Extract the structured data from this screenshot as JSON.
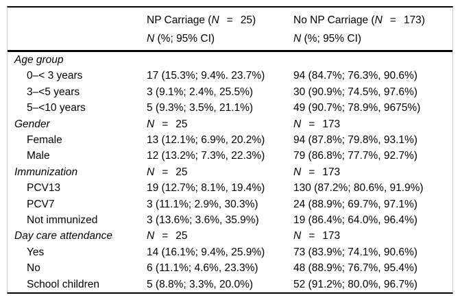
{
  "page": {
    "background": "#ffffff",
    "text_color": "#000000",
    "rule_color": "#000000",
    "frame_color": "#cbcbcb"
  },
  "table": {
    "header": {
      "col2": {
        "line1": [
          {
            "t": "NP Carriage ("
          },
          {
            "t": "N",
            "i": true
          },
          {
            "t": "=",
            "eq": true
          },
          {
            "t": "25)"
          }
        ],
        "line2": [
          {
            "t": "N",
            "i": true
          },
          {
            "t": " (%; 95% CI)"
          }
        ]
      },
      "col3": {
        "line1": [
          {
            "t": "No NP Carriage ("
          },
          {
            "t": "N",
            "i": true
          },
          {
            "t": "=",
            "eq": true
          },
          {
            "t": "173)"
          }
        ],
        "line2": [
          {
            "t": "N",
            "i": true
          },
          {
            "t": " (%; 95% CI)"
          }
        ]
      }
    },
    "rows": [
      {
        "label": "Age group",
        "section": true,
        "col2": [],
        "col3": []
      },
      {
        "label": "0–< 3 years",
        "indent": true,
        "col2": [
          {
            "t": "17 (15.3%; 9.4%. 23.7%)"
          }
        ],
        "col3": [
          {
            "t": "94 (84.7%; 76.3%, 90.6%)"
          }
        ]
      },
      {
        "label": "3–<5 years",
        "indent": true,
        "col2": [
          {
            "t": "3 (9.1%; 2.4%, 25.5%)"
          }
        ],
        "col3": [
          {
            "t": "30 (90.9%; 74.5%, 97.6%)"
          }
        ]
      },
      {
        "label": "5–<10 years",
        "indent": true,
        "col2": [
          {
            "t": "5 (9.3%; 3.5%, 21.1%)"
          }
        ],
        "col3": [
          {
            "t": "49 (90.7%; 78.9%, 9675%)"
          }
        ]
      },
      {
        "label": "Gender",
        "section": true,
        "col2": [
          {
            "t": "N",
            "i": true
          },
          {
            "t": "=",
            "eq": true
          },
          {
            "t": "25"
          }
        ],
        "col3": [
          {
            "t": "N",
            "i": true
          },
          {
            "t": "=",
            "eq": true
          },
          {
            "t": "173"
          }
        ]
      },
      {
        "label": "Female",
        "indent": true,
        "col2": [
          {
            "t": "13 (12.1%; 6.9%, 20.2%)"
          }
        ],
        "col3": [
          {
            "t": "94 (87.8%; 79.8%, 93.1%)"
          }
        ]
      },
      {
        "label": "Male",
        "indent": true,
        "col2": [
          {
            "t": "12 (13.2%; 7.3%, 22.3%)"
          }
        ],
        "col3": [
          {
            "t": "79 (86.8%; 77.7%, 92.7%)"
          }
        ]
      },
      {
        "label": "Immunization",
        "section": true,
        "col2": [
          {
            "t": "N",
            "i": true
          },
          {
            "t": "=",
            "eq": true
          },
          {
            "t": "25"
          }
        ],
        "col3": [
          {
            "t": "N",
            "i": true
          },
          {
            "t": "=",
            "eq": true
          },
          {
            "t": "173"
          }
        ]
      },
      {
        "label": "PCV13",
        "indent": true,
        "col2": [
          {
            "t": "19 (12.7%; 8.1%, 19.4%)"
          }
        ],
        "col3": [
          {
            "t": "130 (87.2%; 80.6%, 91.9%)"
          }
        ]
      },
      {
        "label": "PCV7",
        "indent": true,
        "col2": [
          {
            "t": "3 (11.1%; 2.9%, 30.3%)"
          }
        ],
        "col3": [
          {
            "t": "24 (88.9%; 69.7%, 97.1%)"
          }
        ]
      },
      {
        "label": "Not immunized",
        "indent": true,
        "col2": [
          {
            "t": "3 (13.6%; 3.6%, 35.9%)"
          }
        ],
        "col3": [
          {
            "t": "19 (86.4%; 64.0%, 96.4%)"
          }
        ]
      },
      {
        "label": "Day care attendance",
        "section": true,
        "col2": [
          {
            "t": "N",
            "i": true
          },
          {
            "t": "=",
            "eq": true
          },
          {
            "t": "25"
          }
        ],
        "col3": [
          {
            "t": "N",
            "i": true
          },
          {
            "t": "=",
            "eq": true
          },
          {
            "t": "173"
          }
        ]
      },
      {
        "label": "Yes",
        "indent": true,
        "col2": [
          {
            "t": "14 (16.1%; 9.4%, 25.9%)"
          }
        ],
        "col3": [
          {
            "t": "73 (83.9%; 74.1%, 90.6%)"
          }
        ]
      },
      {
        "label": "No",
        "indent": true,
        "col2": [
          {
            "t": "6 (11.1%; 4.6%, 23.3%)"
          }
        ],
        "col3": [
          {
            "t": "48 (88.9%; 76.7%, 95.4%)"
          }
        ]
      },
      {
        "label": "School children",
        "indent": true,
        "col2": [
          {
            "t": "5 (8.8%; 3.3%, 20.0%)"
          }
        ],
        "col3": [
          {
            "t": "52 (91.2%; 80.0%, 96.7%)"
          }
        ]
      }
    ]
  }
}
